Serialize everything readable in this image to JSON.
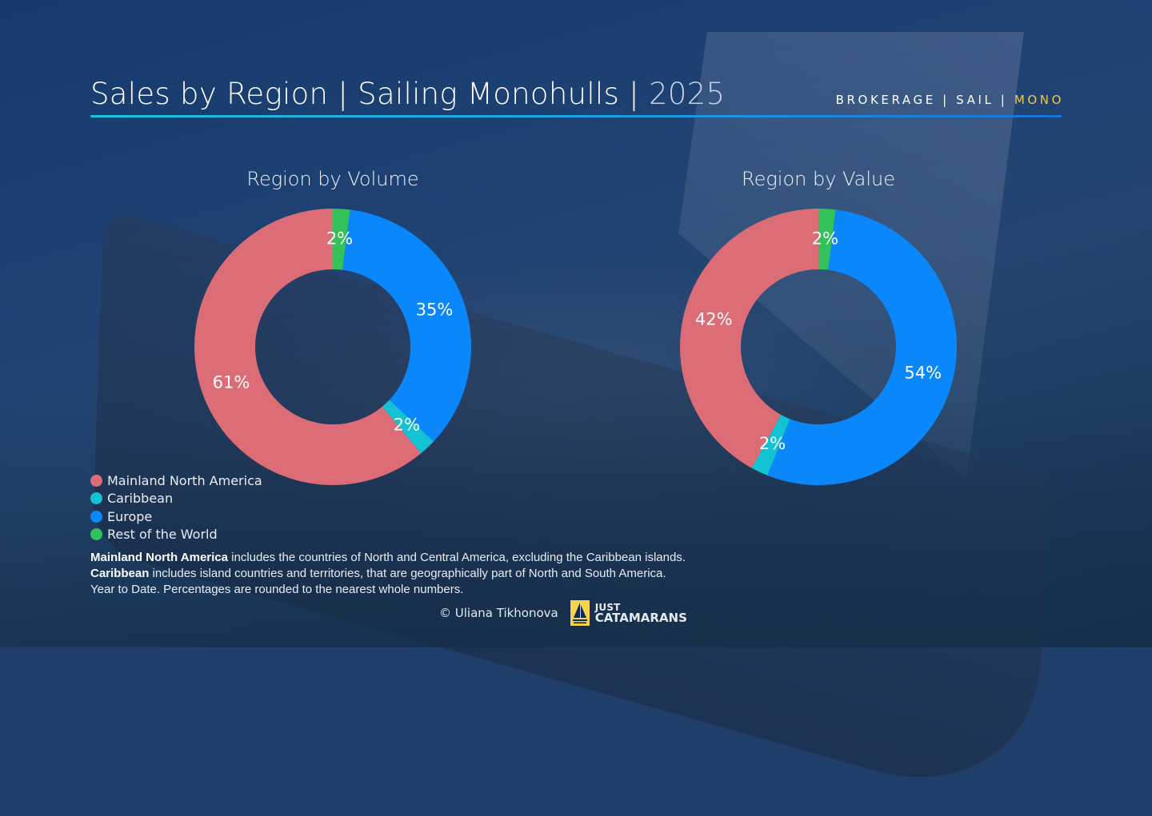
{
  "header": {
    "title_main": "Sales by Region | Sailing Monohulls | ",
    "title_year": "2025",
    "tags_main": "BROKERAGE | SAIL | ",
    "tags_accent": "MONO"
  },
  "colors": {
    "mainland_north_america": "#dc6d76",
    "caribbean": "#12c3d3",
    "europe": "#0a88fb",
    "rest_of_world": "#33c25a",
    "accent_gold": "#f0c94a",
    "rule_cyan": "#1fc3de"
  },
  "legend": {
    "items": [
      {
        "label": "Mainland North America",
        "color": "#dc6d76"
      },
      {
        "label": "Caribbean",
        "color": "#12c3d3"
      },
      {
        "label": "Europe",
        "color": "#0a88fb"
      },
      {
        "label": "Rest of the World",
        "color": "#33c25a"
      }
    ]
  },
  "notes": {
    "line1_bold": "Mainland North America",
    "line1_rest": " includes the countries of North and Central America, excluding the Caribbean islands.",
    "line2_bold": "Caribbean",
    "line2_rest": " includes island countries and territories, that are geographically part of North and South America.",
    "line3": "Year to Date. Percentages are rounded to the nearest whole numbers."
  },
  "footer": {
    "credit": "© Uliana Tikhonova",
    "logo_line1": "JUST",
    "logo_line2": "CATAMARANS"
  },
  "chart_data": [
    {
      "type": "pie",
      "subtype": "donut",
      "title": "Region by Volume",
      "categories": [
        "Rest of the World",
        "Europe",
        "Caribbean",
        "Mainland North America"
      ],
      "values": [
        2,
        35,
        2,
        61
      ],
      "labels": [
        "2%",
        "35%",
        "2%",
        "61%"
      ],
      "colors": [
        "#33c25a",
        "#0a88fb",
        "#12c3d3",
        "#dc6d76"
      ],
      "start_angle": "12 o'clock, clockwise",
      "legend_position": "bottom-left"
    },
    {
      "type": "pie",
      "subtype": "donut",
      "title": "Region by Value",
      "categories": [
        "Rest of the World",
        "Europe",
        "Caribbean",
        "Mainland North America"
      ],
      "values": [
        2,
        54,
        2,
        42
      ],
      "labels": [
        "2%",
        "54%",
        "2%",
        "42%"
      ],
      "colors": [
        "#33c25a",
        "#0a88fb",
        "#12c3d3",
        "#dc6d76"
      ],
      "start_angle": "12 o'clock, clockwise",
      "legend_position": "bottom-left"
    }
  ]
}
